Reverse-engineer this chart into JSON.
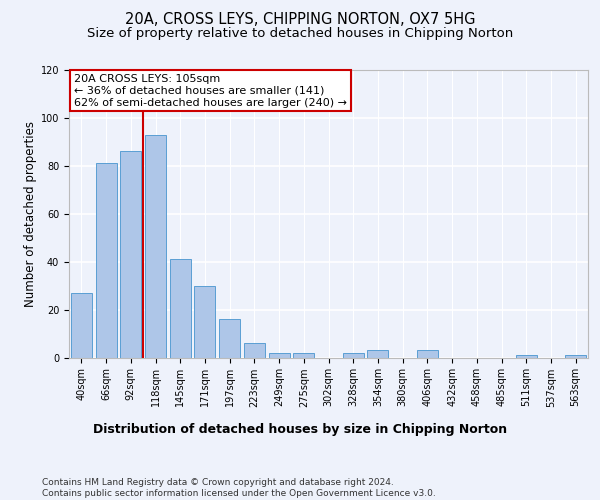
{
  "title1": "20A, CROSS LEYS, CHIPPING NORTON, OX7 5HG",
  "title2": "Size of property relative to detached houses in Chipping Norton",
  "xlabel": "Distribution of detached houses by size in Chipping Norton",
  "ylabel": "Number of detached properties",
  "categories": [
    "40sqm",
    "66sqm",
    "92sqm",
    "118sqm",
    "145sqm",
    "171sqm",
    "197sqm",
    "223sqm",
    "249sqm",
    "275sqm",
    "302sqm",
    "328sqm",
    "354sqm",
    "380sqm",
    "406sqm",
    "432sqm",
    "458sqm",
    "485sqm",
    "511sqm",
    "537sqm",
    "563sqm"
  ],
  "values": [
    27,
    81,
    86,
    93,
    41,
    30,
    16,
    6,
    2,
    2,
    0,
    2,
    3,
    0,
    3,
    0,
    0,
    0,
    1,
    0,
    1
  ],
  "bar_color": "#aec6e8",
  "bar_edge_color": "#5a9fd4",
  "ylim": [
    0,
    120
  ],
  "yticks": [
    0,
    20,
    40,
    60,
    80,
    100,
    120
  ],
  "property_line_x": 2.5,
  "annotation_text": "20A CROSS LEYS: 105sqm\n← 36% of detached houses are smaller (141)\n62% of semi-detached houses are larger (240) →",
  "annotation_box_color": "#ffffff",
  "annotation_box_edge": "#cc0000",
  "footer_text": "Contains HM Land Registry data © Crown copyright and database right 2024.\nContains public sector information licensed under the Open Government Licence v3.0.",
  "background_color": "#eef2fb",
  "grid_color": "#ffffff",
  "title1_fontsize": 10.5,
  "title2_fontsize": 9.5,
  "axis_label_fontsize": 8.5,
  "tick_fontsize": 7,
  "annotation_fontsize": 8,
  "footer_fontsize": 6.5
}
